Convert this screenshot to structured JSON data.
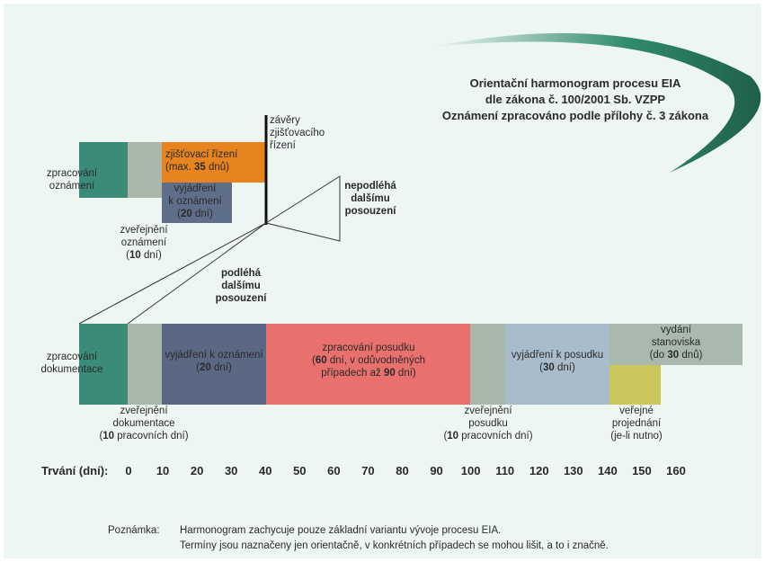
{
  "title": [
    "Orientační harmonogram procesu EIA",
    "dle zákona č. 100/2001 Sb. VZPP",
    "Oznámení zpracováno podle přílohy č. 3 zákona"
  ],
  "labels": [
    [
      [
        "zpracování"
      ],
      [
        "oznámení"
      ]
    ],
    [
      [
        "zjišťovací řízení"
      ],
      [
        "(max. ",
        "35",
        " dnů)"
      ]
    ],
    [
      [
        "vyjádření"
      ],
      [
        "k oznámení"
      ],
      [
        "(",
        "20",
        " dní)"
      ]
    ],
    [
      [
        "zveřejnění"
      ],
      [
        "oznámení"
      ],
      [
        "(",
        "10",
        " dní)"
      ]
    ],
    [
      [
        "závěry"
      ],
      [
        "zjišťovacího"
      ],
      [
        "řízení"
      ]
    ],
    [
      [
        "nepodléhá"
      ],
      [
        "dalšímu"
      ],
      [
        "posouzení"
      ]
    ],
    [
      [
        "podléhá"
      ],
      [
        "dalšímu"
      ],
      [
        "posouzení"
      ]
    ],
    [
      [
        "zpracování"
      ],
      [
        "dokumentace"
      ]
    ],
    [
      [
        "vyjádření k oznámení"
      ],
      [
        "(",
        "20",
        " dní)"
      ]
    ],
    [
      [
        "zpracování posudku"
      ],
      [
        "(",
        "60",
        " dní, v odůvodněných"
      ],
      [
        "případech až ",
        "90",
        " dní)"
      ]
    ],
    [
      [
        "vyjádření k posudku"
      ],
      [
        "(",
        "30",
        " dní)"
      ]
    ],
    [
      [
        "vydání"
      ],
      [
        "stanoviska"
      ],
      [
        "(do ",
        "30",
        " dnů)"
      ]
    ],
    [
      [
        "zveřejnění"
      ],
      [
        "dokumentace"
      ],
      [
        "(",
        "10",
        " pracovních dní)"
      ]
    ],
    [
      [
        "zveřejnění"
      ],
      [
        "posudku"
      ],
      [
        "(",
        "10",
        " pracovních dní)"
      ]
    ],
    [
      [
        "veřejné"
      ],
      [
        "projednání"
      ],
      [
        "(je-li nutno)"
      ]
    ]
  ],
  "axis": {
    "label": "Trvání (dní):",
    "ticks": [
      0,
      10,
      20,
      30,
      40,
      50,
      60,
      70,
      80,
      90,
      100,
      110,
      120,
      130,
      140,
      150,
      160
    ]
  },
  "note": {
    "label": "Poznámka:",
    "lines": [
      "Harmonogram zachycuje pouze základní variantu vývoje procesu EIA.",
      "Termíny jsou naznačeny jen orientačně, v konkrétních případech se mohou lišit, a to i značně."
    ]
  }
}
